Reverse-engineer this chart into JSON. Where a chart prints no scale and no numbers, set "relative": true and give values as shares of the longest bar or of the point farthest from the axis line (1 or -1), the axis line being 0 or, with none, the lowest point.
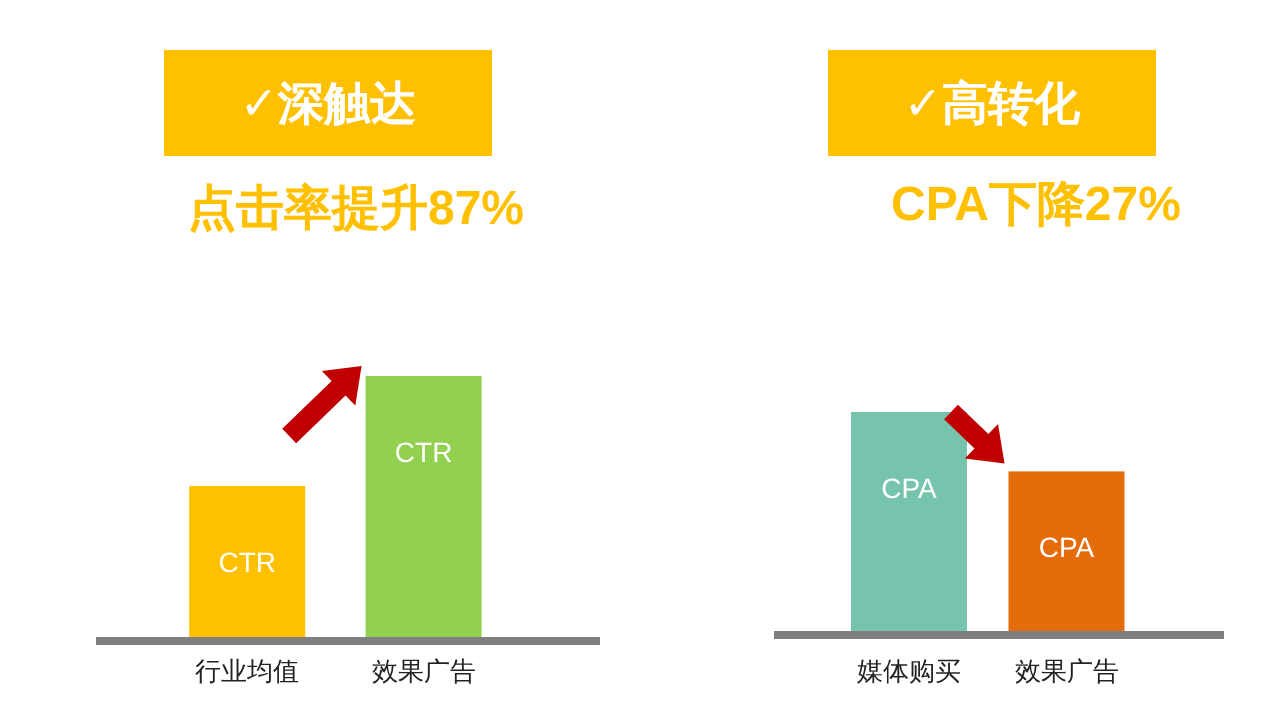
{
  "chart_data": [
    {
      "type": "bar",
      "title": "✓深触达",
      "subtitle": "点击率提升87%",
      "categories": [
        "行业均值",
        "效果广告"
      ],
      "values": [
        0.58,
        1
      ],
      "colors": [
        "#ffc000",
        "#92d050"
      ],
      "relative": true,
      "annotations": [
        {
          "text": "CTR",
          "x": "行业均值",
          "y": 0.58
        },
        {
          "text": "CTR",
          "x": "效果广告",
          "y": 1
        }
      ]
    },
    {
      "type": "bar",
      "title": "✓高转化",
      "subtitle": "CPA下降27%",
      "categories": [
        "媒体购买",
        "效果广告"
      ],
      "values": [
        1,
        0.73
      ],
      "colors": [
        "#77c4ae",
        "#e46c0a"
      ],
      "relative": true,
      "annotations": [
        {
          "text": "CPA",
          "x": "媒体购买",
          "y": 1
        },
        {
          "text": "CPA",
          "x": "效果广告",
          "y": 0.73
        }
      ]
    }
  ]
}
